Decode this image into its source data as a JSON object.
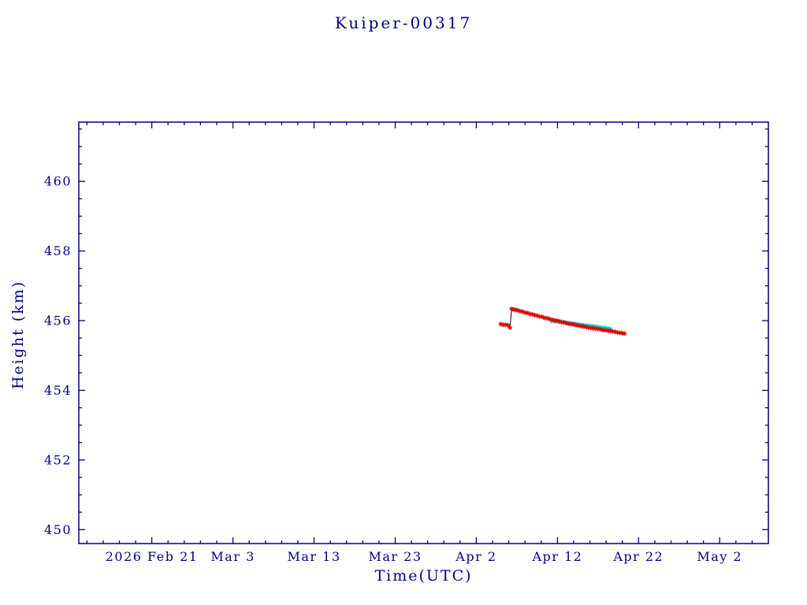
{
  "chart_data": {
    "type": "scatter",
    "title": "Kuiper-00317",
    "xlabel": "Time(UTC)",
    "ylabel": "Height (km)",
    "xlim_days": [
      -9,
      76
    ],
    "ylim": [
      449.6,
      461.7
    ],
    "grid": false,
    "legend": "none",
    "x_ticks": [
      {
        "day": 0,
        "label": "2026 Feb 21"
      },
      {
        "day": 10,
        "label": "Mar 3"
      },
      {
        "day": 20,
        "label": "Mar 13"
      },
      {
        "day": 30,
        "label": "Mar 23"
      },
      {
        "day": 40,
        "label": "Apr 2"
      },
      {
        "day": 50,
        "label": "Apr 12"
      },
      {
        "day": 60,
        "label": "Apr 22"
      },
      {
        "day": 70,
        "label": "May 2"
      }
    ],
    "x_minor_step_days": 2,
    "y_ticks": [
      {
        "value": 450,
        "label": "450"
      },
      {
        "value": 452,
        "label": "452"
      },
      {
        "value": 454,
        "label": "454"
      },
      {
        "value": 456,
        "label": "456"
      },
      {
        "value": 458,
        "label": "458"
      },
      {
        "value": 460,
        "label": "460"
      }
    ],
    "y_minor_step": 0.5,
    "colors": {
      "background": "#ffffff",
      "axis": "#000080",
      "text": "#000080",
      "red_track": "#dd0000",
      "cyan_track": "#00cccc",
      "connect_line": "#000000"
    },
    "series": [
      {
        "name": "cyan-overlay-track",
        "color": "#00cccc",
        "connect_color": "#00cccc",
        "marker": "asterisk",
        "points": [
          [
            49.25,
            456.0
          ],
          [
            49.5,
            455.99
          ],
          [
            49.75,
            455.98
          ],
          [
            50.0,
            455.98
          ],
          [
            50.25,
            455.97
          ],
          [
            50.5,
            455.96
          ],
          [
            50.75,
            455.95
          ],
          [
            51.0,
            455.94
          ],
          [
            51.25,
            455.93
          ],
          [
            51.5,
            455.93
          ],
          [
            51.75,
            455.92
          ],
          [
            52.0,
            455.91
          ],
          [
            52.25,
            455.9
          ],
          [
            52.5,
            455.89
          ],
          [
            52.75,
            455.88
          ],
          [
            53.0,
            455.88
          ],
          [
            53.25,
            455.87
          ],
          [
            53.5,
            455.86
          ],
          [
            53.75,
            455.85
          ],
          [
            54.0,
            455.84
          ],
          [
            54.25,
            455.84
          ],
          [
            54.5,
            455.83
          ],
          [
            54.75,
            455.82
          ],
          [
            55.0,
            455.81
          ],
          [
            55.25,
            455.8
          ],
          [
            55.5,
            455.79
          ],
          [
            55.75,
            455.79
          ],
          [
            56.0,
            455.78
          ],
          [
            56.25,
            455.77
          ],
          [
            56.5,
            455.76
          ]
        ]
      },
      {
        "name": "red-measured-track",
        "color": "#dd0000",
        "connect_color": "#000000",
        "marker": "asterisk",
        "points": [
          [
            43.0,
            455.9
          ],
          [
            43.3,
            455.88
          ],
          [
            43.6,
            455.88
          ],
          [
            43.9,
            455.87
          ],
          [
            44.15,
            455.8
          ],
          [
            44.35,
            456.34
          ],
          [
            44.6,
            456.32
          ],
          [
            44.85,
            456.31
          ],
          [
            45.1,
            456.3
          ],
          [
            45.4,
            456.27
          ],
          [
            45.7,
            456.26
          ],
          [
            46.0,
            456.23
          ],
          [
            46.3,
            456.22
          ],
          [
            46.6,
            456.19
          ],
          [
            46.9,
            456.18
          ],
          [
            47.2,
            456.16
          ],
          [
            47.5,
            456.14
          ],
          [
            47.8,
            456.12
          ],
          [
            48.1,
            456.11
          ],
          [
            48.4,
            456.08
          ],
          [
            48.7,
            456.07
          ],
          [
            49.0,
            456.05
          ],
          [
            49.3,
            456.03
          ],
          [
            49.6,
            456.01
          ],
          [
            49.9,
            456.0
          ],
          [
            50.2,
            455.98
          ],
          [
            50.5,
            455.96
          ],
          [
            50.8,
            455.95
          ],
          [
            51.1,
            455.93
          ],
          [
            51.4,
            455.91
          ],
          [
            51.7,
            455.9
          ],
          [
            52.0,
            455.89
          ],
          [
            52.3,
            455.87
          ],
          [
            52.6,
            455.86
          ],
          [
            52.9,
            455.84
          ],
          [
            53.2,
            455.83
          ],
          [
            53.5,
            455.82
          ],
          [
            53.8,
            455.8
          ],
          [
            54.1,
            455.79
          ],
          [
            54.4,
            455.78
          ],
          [
            54.7,
            455.77
          ],
          [
            55.0,
            455.76
          ],
          [
            55.3,
            455.75
          ],
          [
            55.6,
            455.73
          ],
          [
            55.9,
            455.72
          ],
          [
            56.2,
            455.71
          ],
          [
            56.5,
            455.7
          ],
          [
            56.8,
            455.69
          ],
          [
            57.1,
            455.68
          ],
          [
            57.4,
            455.66
          ],
          [
            57.7,
            455.65
          ],
          [
            58.0,
            455.64
          ],
          [
            58.25,
            455.63
          ]
        ]
      }
    ]
  }
}
